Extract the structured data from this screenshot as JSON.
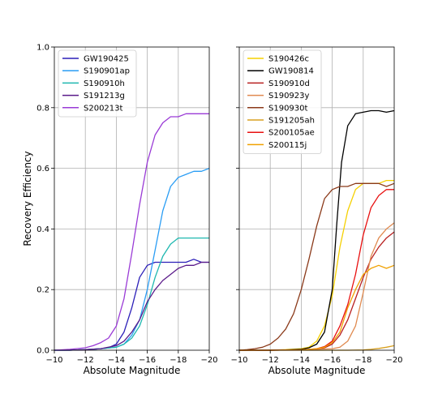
{
  "chart_data": [
    {
      "type": "line",
      "xlabel": "Absolute Magnitude",
      "ylabel": "Recovery Efficiency",
      "xlim": [
        -10,
        -20
      ],
      "ylim": [
        0.0,
        1.0
      ],
      "x_ticks": [
        -10,
        -12,
        -14,
        -16,
        -18,
        -20
      ],
      "x_tick_labels": [
        "−10",
        "−12",
        "−14",
        "−16",
        "−18",
        "−20"
      ],
      "y_ticks": [
        0.0,
        0.2,
        0.4,
        0.6,
        0.8,
        1.0
      ],
      "y_tick_labels": [
        "0.0",
        "0.2",
        "0.4",
        "0.6",
        "0.8",
        "1.0"
      ],
      "grid": true,
      "legend_position": "top-left",
      "series": [
        {
          "name": "GW190425",
          "color": "#2b1fb8",
          "x": [
            -10,
            -11,
            -12,
            -13,
            -13.5,
            -14,
            -14.5,
            -15,
            -15.5,
            -16,
            -16.5,
            -17,
            -17.5,
            -18,
            -18.5,
            -19,
            -19.5,
            -20
          ],
          "y": [
            0.0,
            0.0,
            0.002,
            0.005,
            0.008,
            0.02,
            0.06,
            0.14,
            0.24,
            0.28,
            0.29,
            0.29,
            0.29,
            0.29,
            0.29,
            0.3,
            0.29,
            0.29
          ]
        },
        {
          "name": "S190901ap",
          "color": "#2a9df4",
          "x": [
            -10,
            -11,
            -12,
            -13,
            -14,
            -14.5,
            -15,
            -15.5,
            -16,
            -16.5,
            -17,
            -17.5,
            -18,
            -18.5,
            -19,
            -19.5,
            -20
          ],
          "y": [
            0.0,
            0.0,
            0.002,
            0.005,
            0.01,
            0.02,
            0.05,
            0.1,
            0.2,
            0.33,
            0.46,
            0.54,
            0.57,
            0.58,
            0.59,
            0.59,
            0.6
          ]
        },
        {
          "name": "S190910h",
          "color": "#1fb8b0",
          "x": [
            -10,
            -11,
            -12,
            -13,
            -14,
            -14.5,
            -15,
            -15.5,
            -16,
            -16.5,
            -17,
            -17.5,
            -18,
            -18.5,
            -19,
            -19.5,
            -20
          ],
          "y": [
            0.0,
            0.0,
            0.002,
            0.005,
            0.01,
            0.02,
            0.04,
            0.08,
            0.15,
            0.24,
            0.31,
            0.35,
            0.37,
            0.37,
            0.37,
            0.37,
            0.37
          ]
        },
        {
          "name": "S191213g",
          "color": "#5a1a8a",
          "x": [
            -10,
            -11,
            -12,
            -13,
            -14,
            -14.5,
            -15,
            -15.5,
            -16,
            -16.5,
            -17,
            -17.5,
            -18,
            -18.5,
            -19,
            -19.5,
            -20
          ],
          "y": [
            0.0,
            0.0,
            0.002,
            0.005,
            0.015,
            0.03,
            0.06,
            0.1,
            0.16,
            0.2,
            0.23,
            0.25,
            0.27,
            0.28,
            0.28,
            0.29,
            0.29
          ]
        },
        {
          "name": "S200213t",
          "color": "#9a3bd6",
          "x": [
            -10,
            -11,
            -12,
            -12.5,
            -13,
            -13.5,
            -14,
            -14.5,
            -15,
            -15.5,
            -16,
            -16.5,
            -17,
            -17.5,
            -18,
            -18.5,
            -19,
            -19.5,
            -20
          ],
          "y": [
            0.0,
            0.003,
            0.008,
            0.015,
            0.025,
            0.04,
            0.08,
            0.17,
            0.32,
            0.48,
            0.62,
            0.71,
            0.75,
            0.77,
            0.77,
            0.78,
            0.78,
            0.78,
            0.78
          ]
        }
      ]
    },
    {
      "type": "line",
      "xlabel": "Absolute Magnitude",
      "ylabel": "",
      "xlim": [
        -10,
        -20
      ],
      "ylim": [
        0.0,
        1.0
      ],
      "x_ticks": [
        -10,
        -12,
        -14,
        -16,
        -18,
        -20
      ],
      "x_tick_labels": [
        "−10",
        "−12",
        "−14",
        "−16",
        "−18",
        "−20"
      ],
      "y_ticks": [
        0.0,
        0.2,
        0.4,
        0.6,
        0.8,
        1.0
      ],
      "y_tick_labels": [],
      "grid": true,
      "legend_position": "top-left",
      "series": [
        {
          "name": "S190426c",
          "color": "#f5d000",
          "x": [
            -10,
            -12,
            -13,
            -14,
            -14.5,
            -15,
            -15.5,
            -16,
            -16.5,
            -17,
            -17.5,
            -18,
            -18.5,
            -19,
            -19.5,
            -20
          ],
          "y": [
            0.0,
            0.0,
            0.002,
            0.005,
            0.01,
            0.03,
            0.08,
            0.18,
            0.34,
            0.46,
            0.53,
            0.55,
            0.55,
            0.55,
            0.56,
            0.56
          ]
        },
        {
          "name": "GW190814",
          "color": "#000000",
          "x": [
            -10,
            -12,
            -13,
            -14,
            -14.5,
            -15,
            -15.5,
            -16,
            -16.3,
            -16.6,
            -17,
            -17.5,
            -18,
            -18.5,
            -19,
            -19.5,
            -20
          ],
          "y": [
            0.0,
            0.0,
            0.001,
            0.003,
            0.008,
            0.02,
            0.06,
            0.2,
            0.42,
            0.62,
            0.74,
            0.78,
            0.785,
            0.79,
            0.79,
            0.785,
            0.79
          ]
        },
        {
          "name": "S190910d",
          "color": "#b82020",
          "x": [
            -10,
            -12,
            -14,
            -15,
            -15.5,
            -16,
            -16.5,
            -17,
            -17.5,
            -18,
            -18.5,
            -19,
            -19.5,
            -20
          ],
          "y": [
            0.0,
            0.0,
            0.001,
            0.003,
            0.008,
            0.02,
            0.05,
            0.1,
            0.17,
            0.24,
            0.3,
            0.34,
            0.37,
            0.39
          ]
        },
        {
          "name": "S190923y",
          "color": "#e08a50",
          "x": [
            -10,
            -12,
            -14,
            -16,
            -16.5,
            -17,
            -17.5,
            -18,
            -18.5,
            -19,
            -19.5,
            -20
          ],
          "y": [
            0.0,
            0.0,
            0.001,
            0.005,
            0.01,
            0.03,
            0.08,
            0.19,
            0.31,
            0.37,
            0.4,
            0.42
          ]
        },
        {
          "name": "S190930t",
          "color": "#8b3a1a",
          "x": [
            -10,
            -10.5,
            -11,
            -11.5,
            -12,
            -12.5,
            -13,
            -13.5,
            -14,
            -14.5,
            -15,
            -15.5,
            -16,
            -16.5,
            -17,
            -17.5,
            -18,
            -18.5,
            -19,
            -19.5,
            -20
          ],
          "y": [
            0.0,
            0.002,
            0.005,
            0.01,
            0.02,
            0.04,
            0.07,
            0.12,
            0.2,
            0.3,
            0.41,
            0.5,
            0.53,
            0.54,
            0.54,
            0.55,
            0.55,
            0.55,
            0.55,
            0.54,
            0.55
          ]
        },
        {
          "name": "S191205ah",
          "color": "#d8a020",
          "x": [
            -10,
            -12,
            -14,
            -16,
            -17,
            -18,
            -18.5,
            -19,
            -19.5,
            -20
          ],
          "y": [
            0.0,
            0.0,
            0.0,
            0.0,
            0.0,
            0.001,
            0.003,
            0.006,
            0.01,
            0.015
          ]
        },
        {
          "name": "S200105ae",
          "color": "#e81010",
          "x": [
            -10,
            -12,
            -14,
            -15,
            -15.5,
            -16,
            -16.5,
            -17,
            -17.5,
            -18,
            -18.5,
            -19,
            -19.5,
            -20
          ],
          "y": [
            0.0,
            0.0,
            0.001,
            0.005,
            0.012,
            0.03,
            0.08,
            0.15,
            0.25,
            0.38,
            0.47,
            0.51,
            0.53,
            0.53
          ]
        },
        {
          "name": "S200115j",
          "color": "#f0a000",
          "x": [
            -10,
            -12,
            -14,
            -15,
            -15.5,
            -16,
            -16.5,
            -17,
            -17.5,
            -18,
            -18.5,
            -19,
            -19.5,
            -20
          ],
          "y": [
            0.0,
            0.0,
            0.001,
            0.005,
            0.01,
            0.025,
            0.06,
            0.14,
            0.2,
            0.25,
            0.27,
            0.28,
            0.27,
            0.28
          ]
        }
      ]
    }
  ]
}
